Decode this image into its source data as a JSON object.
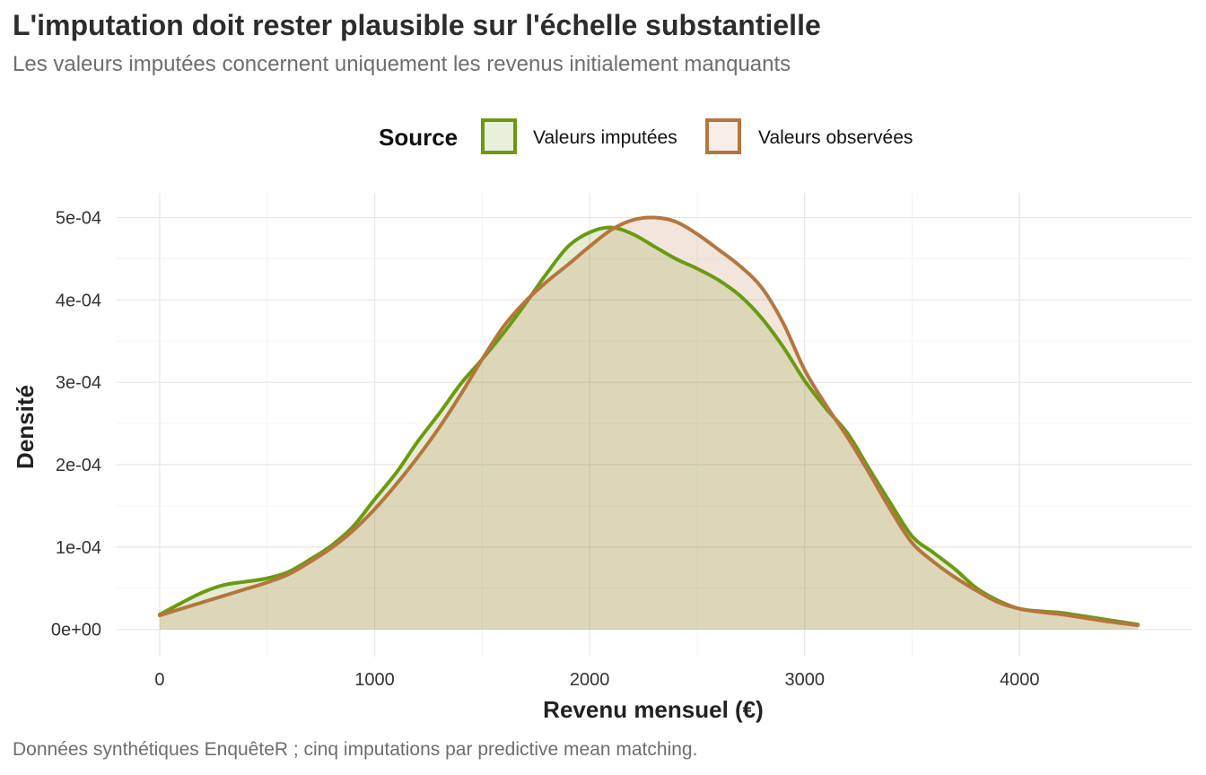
{
  "header": {
    "title": "L'imputation doit rester plausible sur l'échelle substantielle",
    "subtitle": "Les valeurs imputées concernent uniquement les revenus initialement manquants"
  },
  "legend": {
    "title": "Source",
    "position": "top",
    "items": [
      {
        "label": "Valeurs imputées",
        "color": "#6b9a12",
        "fill": "#e9f1dc"
      },
      {
        "label": "Valeurs observées",
        "color": "#b5763e",
        "fill": "#f8ede8"
      }
    ]
  },
  "caption": "Données synthétiques EnquêteR ; cinq imputations par predictive mean matching.",
  "chart_data": {
    "type": "area",
    "xlabel": "Revenu mensuel (€)",
    "ylabel": "Densité",
    "xlim": [
      -200,
      4800
    ],
    "ylim": [
      -3.3e-05,
      0.00053
    ],
    "x_ticks": [
      0,
      1000,
      2000,
      3000,
      4000
    ],
    "x_tick_labels": [
      "0",
      "1000",
      "2000",
      "3000",
      "4000"
    ],
    "y_ticks": [
      0,
      0.0001,
      0.0002,
      0.0003,
      0.0004,
      0.0005
    ],
    "y_tick_labels": [
      "0e+00",
      "1e-04",
      "2e-04",
      "3e-04",
      "4e-04",
      "5e-04"
    ],
    "grid": true,
    "series": [
      {
        "name": "Valeurs imputées",
        "color": "#6b9a12",
        "fill": "#e9f1dc",
        "x": [
          0,
          100,
          200,
          300,
          400,
          500,
          600,
          700,
          800,
          900,
          1000,
          1100,
          1200,
          1300,
          1400,
          1500,
          1600,
          1700,
          1800,
          1900,
          2000,
          2100,
          2200,
          2300,
          2400,
          2500,
          2600,
          2700,
          2800,
          2900,
          3000,
          3100,
          3200,
          3300,
          3400,
          3500,
          3600,
          3700,
          3800,
          3900,
          4000,
          4100,
          4200,
          4300,
          4400,
          4550
        ],
        "y": [
          1.8e-05,
          3.2e-05,
          4.5e-05,
          5.4e-05,
          5.8e-05,
          6.2e-05,
          7e-05,
          8.5e-05,
          0.000102,
          0.000125,
          0.000158,
          0.00019,
          0.000228,
          0.000262,
          0.000298,
          0.000328,
          0.00036,
          0.000395,
          0.000432,
          0.000465,
          0.000482,
          0.000488,
          0.00048,
          0.000465,
          0.00045,
          0.000438,
          0.000424,
          0.000405,
          0.000378,
          0.000343,
          0.000302,
          0.000268,
          0.000238,
          0.000195,
          0.000153,
          0.000113,
          9.3e-05,
          7.3e-05,
          5e-05,
          3.5e-05,
          2.5e-05,
          2.2e-05,
          2e-05,
          1.6e-05,
          1.2e-05,
          6e-06
        ]
      },
      {
        "name": "Valeurs observées",
        "color": "#b5763e",
        "fill": "#f8ede8",
        "x": [
          0,
          100,
          200,
          300,
          400,
          500,
          600,
          700,
          800,
          900,
          1000,
          1100,
          1200,
          1300,
          1400,
          1500,
          1600,
          1700,
          1800,
          1900,
          2000,
          2100,
          2200,
          2300,
          2400,
          2500,
          2600,
          2700,
          2800,
          2900,
          3000,
          3100,
          3200,
          3300,
          3400,
          3500,
          3600,
          3700,
          3800,
          3900,
          4000,
          4100,
          4200,
          4300,
          4400,
          4550
        ],
        "y": [
          1.7e-05,
          2.5e-05,
          3.3e-05,
          4.1e-05,
          4.9e-05,
          5.7e-05,
          6.7e-05,
          8.2e-05,
          9.9e-05,
          0.00012,
          0.000146,
          0.000176,
          0.000209,
          0.000245,
          0.000285,
          0.000328,
          0.000368,
          0.000398,
          0.000422,
          0.000443,
          0.000465,
          0.000485,
          0.000497,
          0.0005,
          0.000495,
          0.00048,
          0.000461,
          0.000441,
          0.000415,
          0.000372,
          0.000315,
          0.000272,
          0.000233,
          0.00019,
          0.000145,
          0.000105,
          8.2e-05,
          6.3e-05,
          4.7e-05,
          3.3e-05,
          2.5e-05,
          2.1e-05,
          1.8e-05,
          1.4e-05,
          1e-05,
          5e-06
        ]
      }
    ]
  }
}
